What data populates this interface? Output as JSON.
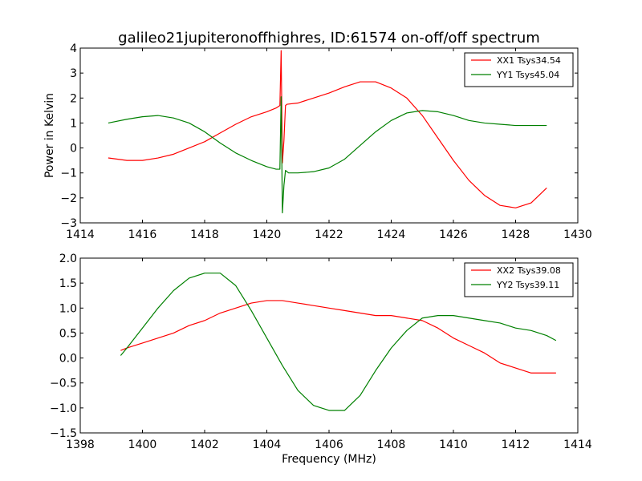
{
  "title": "galileo21jupiteronoffhighres, ID:61574 on-off/off spectrum",
  "chart_data": [
    {
      "type": "line",
      "ylabel": "Power in Kelvin",
      "xlabel": "",
      "xlim": [
        1414,
        1430
      ],
      "ylim": [
        -3,
        4
      ],
      "xticks": [
        "1414",
        "1416",
        "1418",
        "1420",
        "1422",
        "1424",
        "1426",
        "1428",
        "1430"
      ],
      "yticks": [
        "−3",
        "−2",
        "−1",
        "0",
        "1",
        "2",
        "3",
        "4"
      ],
      "legend_position": "top-right",
      "grid": false,
      "series": [
        {
          "name": "XX1 Tsys34.54",
          "color": "#ff0000",
          "x": [
            1414.9,
            1415.5,
            1416.0,
            1416.5,
            1417.0,
            1417.5,
            1418.0,
            1418.5,
            1419.0,
            1419.5,
            1420.0,
            1420.3,
            1420.42,
            1420.46,
            1420.5,
            1420.55,
            1420.6,
            1420.65,
            1421.0,
            1421.5,
            1422.0,
            1422.5,
            1423.0,
            1423.5,
            1424.0,
            1424.5,
            1425.0,
            1425.5,
            1426.0,
            1426.5,
            1427.0,
            1427.5,
            1428.0,
            1428.5,
            1429.0
          ],
          "y": [
            -0.4,
            -0.5,
            -0.5,
            -0.4,
            -0.25,
            0.0,
            0.25,
            0.6,
            0.95,
            1.25,
            1.45,
            1.6,
            1.7,
            3.9,
            -0.6,
            0.3,
            1.7,
            1.75,
            1.8,
            2.0,
            2.2,
            2.45,
            2.65,
            2.65,
            2.4,
            2.0,
            1.3,
            0.4,
            -0.5,
            -1.3,
            -1.9,
            -2.3,
            -2.4,
            -2.2,
            -1.6
          ]
        },
        {
          "name": "YY1 Tsys45.04",
          "color": "#008000",
          "x": [
            1414.9,
            1415.5,
            1416.0,
            1416.5,
            1417.0,
            1417.5,
            1418.0,
            1418.5,
            1419.0,
            1419.5,
            1420.0,
            1420.3,
            1420.42,
            1420.46,
            1420.5,
            1420.55,
            1420.6,
            1420.7,
            1421.0,
            1421.5,
            1422.0,
            1422.5,
            1423.0,
            1423.5,
            1424.0,
            1424.5,
            1425.0,
            1425.5,
            1426.0,
            1426.5,
            1427.0,
            1427.5,
            1428.0,
            1428.5,
            1429.0
          ],
          "y": [
            1.0,
            1.15,
            1.25,
            1.3,
            1.2,
            1.0,
            0.65,
            0.2,
            -0.2,
            -0.5,
            -0.75,
            -0.85,
            -0.85,
            2.05,
            -2.6,
            -1.5,
            -0.9,
            -1.0,
            -1.0,
            -0.95,
            -0.8,
            -0.45,
            0.1,
            0.65,
            1.1,
            1.4,
            1.5,
            1.45,
            1.3,
            1.1,
            1.0,
            0.95,
            0.9,
            0.9,
            0.9
          ]
        }
      ]
    },
    {
      "type": "line",
      "ylabel": "",
      "xlabel": "Frequency (MHz)",
      "xlim": [
        1398,
        1414
      ],
      "ylim": [
        -1.5,
        2.0
      ],
      "xticks": [
        "1398",
        "1400",
        "1402",
        "1404",
        "1406",
        "1408",
        "1410",
        "1412",
        "1414"
      ],
      "yticks": [
        "−1.5",
        "−1.0",
        "−0.5",
        "0.0",
        "0.5",
        "1.0",
        "1.5",
        "2.0"
      ],
      "legend_position": "top-right",
      "grid": false,
      "series": [
        {
          "name": "XX2 Tsys39.08",
          "color": "#ff0000",
          "x": [
            1399.3,
            1399.5,
            1400.0,
            1400.5,
            1401.0,
            1401.5,
            1402.0,
            1402.5,
            1403.0,
            1403.5,
            1404.0,
            1404.5,
            1405.0,
            1405.5,
            1406.0,
            1406.5,
            1407.0,
            1407.5,
            1408.0,
            1408.5,
            1409.0,
            1409.5,
            1410.0,
            1410.5,
            1411.0,
            1411.5,
            1412.0,
            1412.5,
            1413.0,
            1413.3
          ],
          "y": [
            0.15,
            0.2,
            0.3,
            0.4,
            0.5,
            0.65,
            0.75,
            0.9,
            1.0,
            1.1,
            1.15,
            1.15,
            1.1,
            1.05,
            1.0,
            0.95,
            0.9,
            0.85,
            0.85,
            0.8,
            0.75,
            0.6,
            0.4,
            0.25,
            0.1,
            -0.1,
            -0.2,
            -0.3,
            -0.3,
            -0.3
          ]
        },
        {
          "name": "YY2 Tsys39.11",
          "color": "#008000",
          "x": [
            1399.3,
            1399.5,
            1400.0,
            1400.5,
            1401.0,
            1401.5,
            1402.0,
            1402.5,
            1403.0,
            1403.5,
            1404.0,
            1404.5,
            1405.0,
            1405.5,
            1406.0,
            1406.5,
            1407.0,
            1407.5,
            1408.0,
            1408.5,
            1409.0,
            1409.5,
            1410.0,
            1410.5,
            1411.0,
            1411.5,
            1412.0,
            1412.5,
            1413.0,
            1413.3
          ],
          "y": [
            0.05,
            0.2,
            0.6,
            1.0,
            1.35,
            1.6,
            1.7,
            1.7,
            1.45,
            0.95,
            0.4,
            -0.15,
            -0.65,
            -0.95,
            -1.05,
            -1.05,
            -0.75,
            -0.25,
            0.2,
            0.55,
            0.8,
            0.85,
            0.85,
            0.8,
            0.75,
            0.7,
            0.6,
            0.55,
            0.45,
            0.35
          ]
        }
      ]
    }
  ]
}
